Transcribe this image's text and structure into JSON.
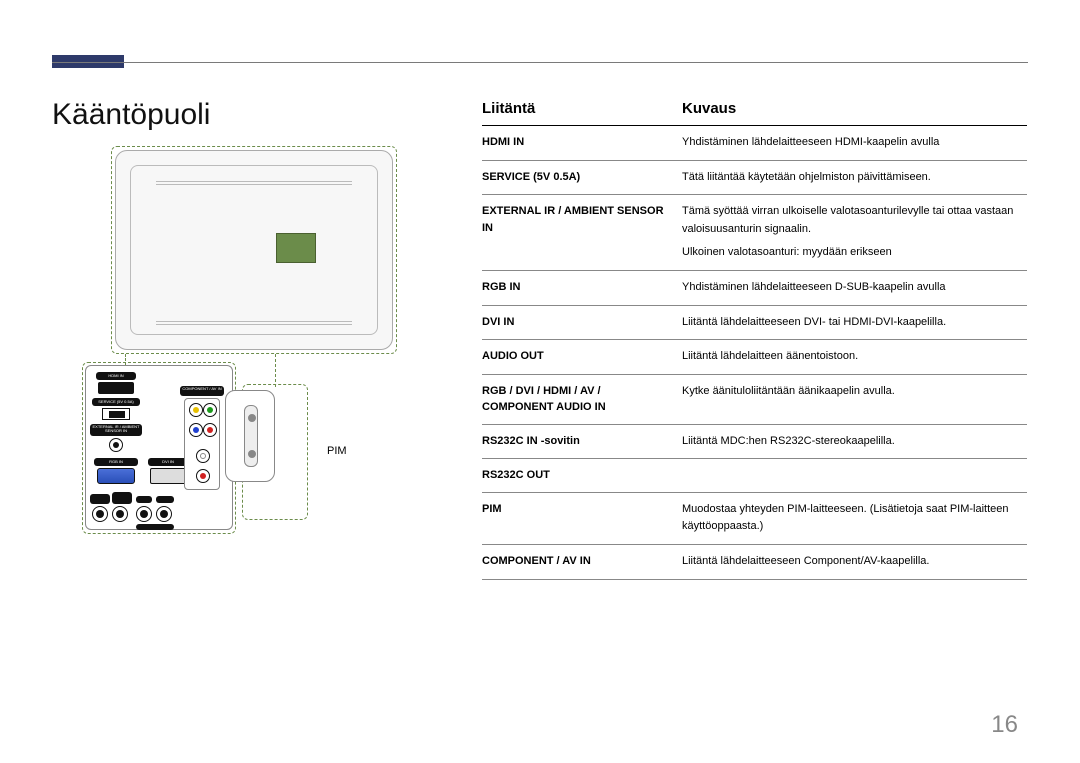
{
  "accent_color": "#2e3a6a",
  "page_number": "16",
  "section_title": "Kääntöpuoli",
  "pim_label": "PIM",
  "table": {
    "header_port": "Liitäntä",
    "header_desc": "Kuvaus",
    "rows": [
      {
        "port": "HDMI IN",
        "desc": [
          "Yhdistäminen lähdelaitteeseen HDMI-kaapelin avulla"
        ]
      },
      {
        "port": "SERVICE (5V 0.5A)",
        "desc": [
          "Tätä liitäntää käytetään ohjelmiston päivittämiseen."
        ]
      },
      {
        "port": "EXTERNAL IR / AMBIENT SENSOR IN",
        "desc": [
          "Tämä syöttää virran ulkoiselle valotasoanturilevylle tai ottaa vastaan valoisuusanturin signaalin.",
          "Ulkoinen valotasoanturi: myydään erikseen"
        ]
      },
      {
        "port": "RGB IN",
        "desc": [
          "Yhdistäminen lähdelaitteeseen D-SUB-kaapelin avulla"
        ]
      },
      {
        "port": "DVI IN",
        "desc": [
          "Liitäntä lähdelaitteeseen DVI- tai HDMI-DVI-kaapelilla."
        ]
      },
      {
        "port": "AUDIO OUT",
        "desc": [
          "Liitäntä lähdelaitteen äänentoistoon."
        ]
      },
      {
        "port": "RGB / DVI / HDMI / AV / COMPONENT AUDIO IN",
        "desc": [
          "Kytke äänituloliitäntään äänikaapelin avulla."
        ]
      },
      {
        "port": "RS232C IN -sovitin",
        "desc": [
          "Liitäntä MDC:hen RS232C-stereokaapelilla."
        ]
      },
      {
        "port": "RS232C OUT",
        "desc": [
          ""
        ]
      },
      {
        "port": "PIM",
        "desc": [
          "Muodostaa yhteyden PIM-laitteeseen. (Lisätietoja saat PIM-laitteen käyttöoppaasta.)"
        ]
      },
      {
        "port": "COMPONENT / AV IN",
        "desc": [
          "Liitäntä lähdelaitteeseen Component/AV-kaapelilla."
        ]
      }
    ]
  },
  "panel_labels": {
    "hdmi": "HDMI IN",
    "service": "SERVICE (5V 0.5A)",
    "ext": "EXTERNAL IR / AMBIENT SENSOR IN",
    "rgb": "RGB IN",
    "dvi": "DVI IN",
    "component": "COMPONENT / AV IN",
    "audio_out": "AUDIO OUT",
    "audio_in": "RGB/DVI/HDMI/AV AUDIO IN",
    "rs_in": "IN",
    "rs_out": "OUT",
    "rs": "RS232C"
  }
}
